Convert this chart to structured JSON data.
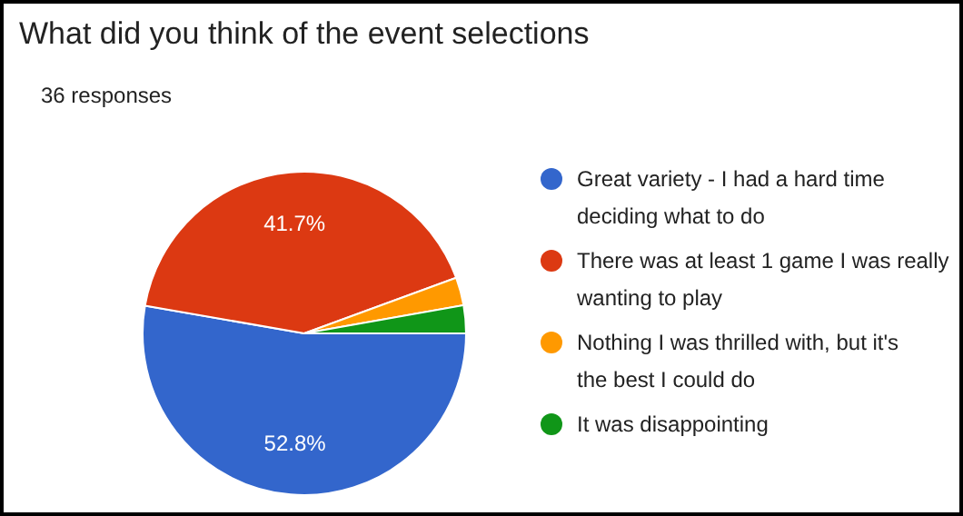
{
  "chart_data": {
    "type": "pie",
    "title": "What did you think of the event selections",
    "subtitle": "36 responses",
    "categories": [
      "Great variety - I had a hard time deciding what to do",
      "There was at least 1 game I was really wanting to play",
      "Nothing I was thrilled with, but it's the best I could do",
      "It was disappointing"
    ],
    "values": [
      52.8,
      41.7,
      2.8,
      2.8
    ],
    "colors": [
      "#3366cc",
      "#dc3912",
      "#ff9900",
      "#109618"
    ],
    "value_labels": [
      "52.8%",
      "41.7%",
      null,
      null
    ],
    "legend": "right"
  }
}
